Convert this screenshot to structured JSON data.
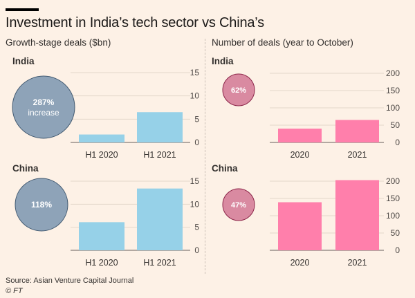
{
  "title": "Investment in India’s tech sector vs China’s",
  "left_subtitle": "Growth-stage deals ($bn)",
  "right_subtitle": "Number of deals (year to October)",
  "footer": {
    "source": "Source: Asian Venture Capital Journal",
    "credit": "© FT"
  },
  "colors": {
    "background": "#fdf1e6",
    "left_bar": "#96d1e8",
    "left_bubble": "#8ea3b8",
    "left_bubble_stroke": "#425a71",
    "right_bar": "#ff7fab",
    "right_bubble": "#d98aa1",
    "right_bubble_stroke": "#8c2549"
  },
  "chart_data": [
    {
      "type": "bar",
      "title": "India",
      "metric": "Growth-stage deals ($bn)",
      "categories": [
        "H1 2020",
        "H1 2021"
      ],
      "values": [
        1.7,
        6.5
      ],
      "ylim": [
        0,
        15
      ],
      "yticks": [
        0,
        5,
        10,
        15
      ],
      "change_label": "287%",
      "change_sublabel": "increase"
    },
    {
      "type": "bar",
      "title": "China",
      "metric": "Growth-stage deals ($bn)",
      "categories": [
        "H1 2020",
        "H1 2021"
      ],
      "values": [
        6.1,
        13.4
      ],
      "ylim": [
        0,
        15
      ],
      "yticks": [
        0,
        5,
        10,
        15
      ],
      "change_label": "118%",
      "change_sublabel": ""
    },
    {
      "type": "bar",
      "title": "India",
      "metric": "Number of deals (year to October)",
      "categories": [
        "2020",
        "2021"
      ],
      "values": [
        40,
        65
      ],
      "ylim": [
        0,
        200
      ],
      "yticks": [
        0,
        50,
        100,
        150,
        200
      ],
      "change_label": "62%",
      "change_sublabel": ""
    },
    {
      "type": "bar",
      "title": "China",
      "metric": "Number of deals (year to October)",
      "categories": [
        "2020",
        "2021"
      ],
      "values": [
        139,
        203
      ],
      "ylim": [
        0,
        200
      ],
      "yticks": [
        0,
        50,
        100,
        150,
        200
      ],
      "change_label": "47%",
      "change_sublabel": ""
    }
  ]
}
